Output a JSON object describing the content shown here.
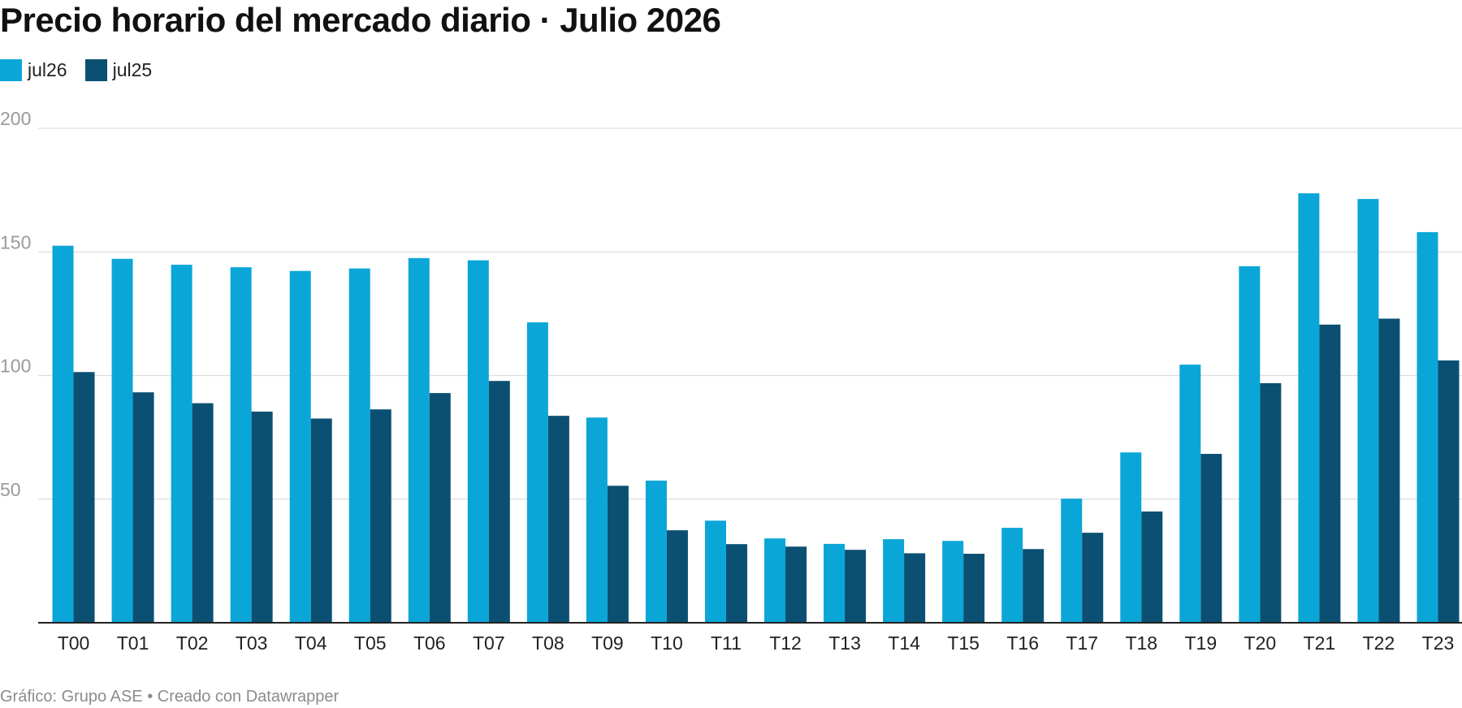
{
  "page": {
    "title": "Precio horario del mercado diario · Julio 2026",
    "footer": "Gráfico: Grupo ASE • Creado con Datawrapper"
  },
  "colors": {
    "jul26": "#0ba6d8",
    "jul25": "#0b5072"
  },
  "chart_data": {
    "type": "bar",
    "title": "Precio horario del mercado diario · Julio 2026",
    "xlabel": "",
    "ylabel": "",
    "ylim": [
      0,
      200
    ],
    "yticks": [
      50,
      100,
      150,
      200
    ],
    "grid": true,
    "legend_position": "top-left",
    "categories": [
      "T00",
      "T01",
      "T02",
      "T03",
      "T04",
      "T05",
      "T06",
      "T07",
      "T08",
      "T09",
      "T10",
      "T11",
      "T12",
      "T13",
      "T14",
      "T15",
      "T16",
      "T17",
      "T18",
      "T19",
      "T20",
      "T21",
      "T22",
      "T23"
    ],
    "series": [
      {
        "name": "jul26",
        "color": "#0ba6d8",
        "values": [
          152.5,
          147.2,
          144.8,
          143.8,
          142.3,
          143.3,
          147.5,
          146.6,
          121.5,
          83.0,
          57.5,
          41.3,
          34.1,
          31.9,
          33.8,
          33.1,
          38.4,
          50.2,
          68.9,
          104.4,
          144.2,
          173.7,
          171.4,
          158.0
        ]
      },
      {
        "name": "jul25",
        "color": "#0b5072",
        "values": [
          101.4,
          93.2,
          88.8,
          85.4,
          82.6,
          86.3,
          92.9,
          97.8,
          83.7,
          55.4,
          37.4,
          31.8,
          30.8,
          29.5,
          28.1,
          27.9,
          29.8,
          36.4,
          45.0,
          68.3,
          96.9,
          120.6,
          123.0,
          106.1
        ]
      }
    ]
  }
}
